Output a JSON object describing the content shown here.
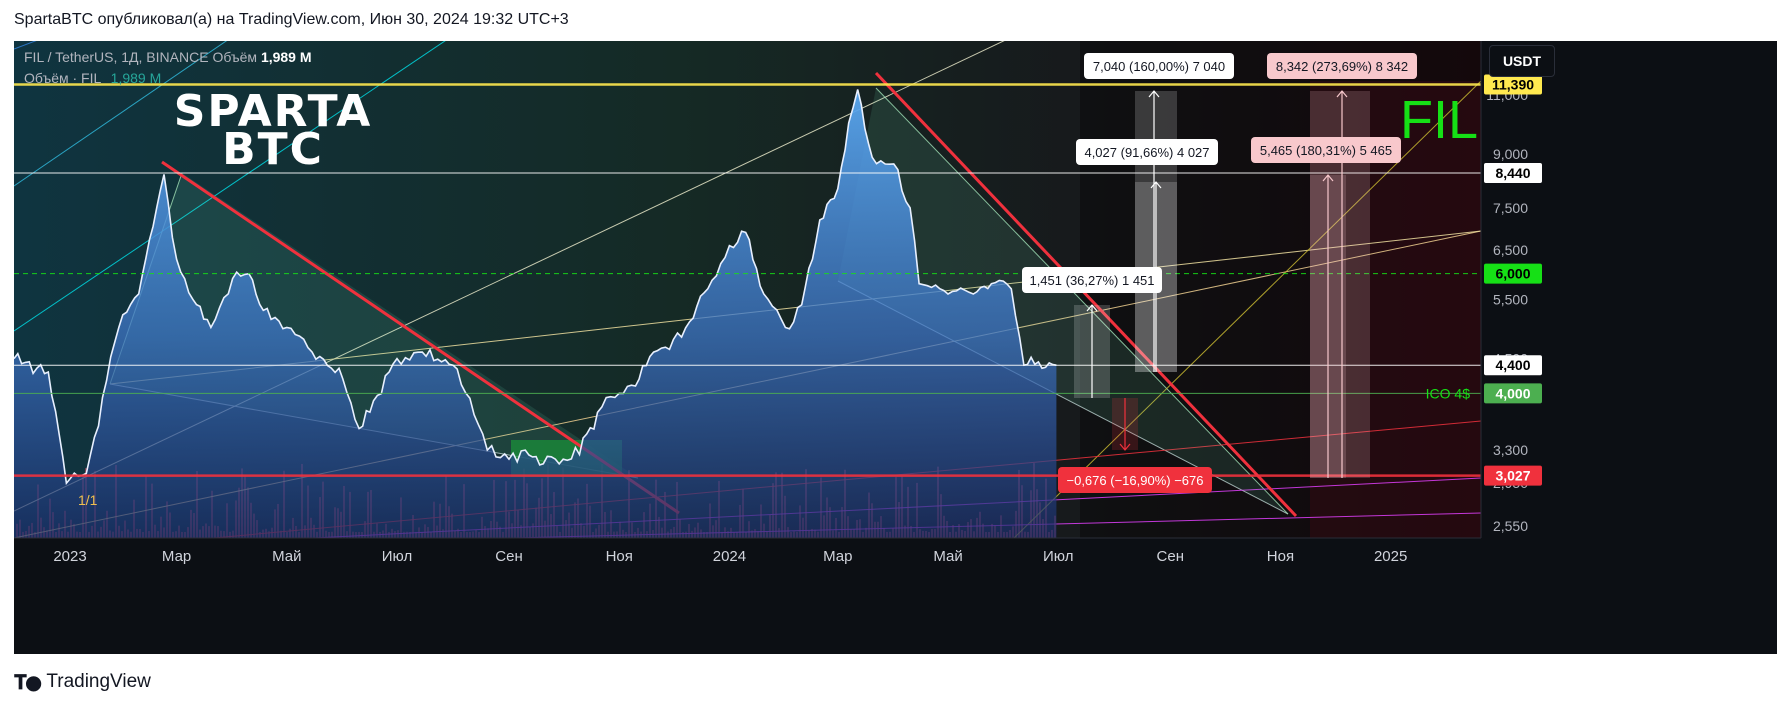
{
  "header": {
    "publish_line": "SpartaBTC опубликовал(а) на TradingView.com, Июн 30, 2024 19:32 UTC+3"
  },
  "symbol_info": {
    "title": "FIL / TetherUS, 1Д, BINANCE",
    "volume_label": "Объём",
    "volume_value": "1,989 M",
    "volume_line_label": "Объём · FIL",
    "volume_line_value": "1,989 M"
  },
  "watermark": {
    "line1": "SPARTA",
    "line2": "BTC"
  },
  "ticker_big": "FIL",
  "currency_button": "USDT",
  "footer": {
    "brand": "TradingView"
  },
  "colors": {
    "background": "#0c0f14",
    "area_line": "#e8f0ff",
    "area_top": "#5aa8f0",
    "area_bottom": "#1a2d6a",
    "resistance_red": "#f0313d",
    "level_yellow": "#ffe94f",
    "level_green": "#16e016",
    "ico_green": "#4caf50",
    "accent_pink": "#e040fb",
    "fib_green": "#1b8f3a"
  },
  "price_axis": {
    "ticks": [
      "11,000",
      "9,000",
      "7,500",
      "6,500",
      "5,500",
      "4,500",
      "3,300",
      "2,950",
      "2,550"
    ]
  },
  "time_axis": {
    "ticks": [
      "2023",
      "Мар",
      "Май",
      "Июл",
      "Сен",
      "Ноя",
      "2024",
      "Мар",
      "Май",
      "Июл",
      "Сен",
      "Ноя",
      "2025"
    ]
  },
  "levels": [
    {
      "price": 11.39,
      "label": "11,390",
      "color": "#ffe94f"
    },
    {
      "price": 8.44,
      "label": "8,440",
      "color": "#ffffff"
    },
    {
      "price": 6.0,
      "label": "6,000",
      "color": "#16e016"
    },
    {
      "price": 4.4,
      "label": "4,400",
      "color": "#ffffff"
    },
    {
      "price": 4.0,
      "label": "4,000",
      "color": "#4caf50"
    },
    {
      "price": 3.027,
      "label": "3,027",
      "color": "#f0313d"
    }
  ],
  "ico_label": "ICO 4$",
  "pivot_label": "1/1",
  "measurements": [
    {
      "text": "7,040 (160,00%) 7 040",
      "style": "white"
    },
    {
      "text": "4,027 (91,66%) 4 027",
      "style": "white"
    },
    {
      "text": "1,451 (36,27%) 1 451",
      "style": "white"
    },
    {
      "text": "−0,676 (−16,90%) −676",
      "style": "red"
    },
    {
      "text": "8,342 (273,69%) 8 342",
      "style": "pink"
    },
    {
      "text": "5,465 (180,31%) 5 465",
      "style": "pink"
    }
  ],
  "chart_data": {
    "type": "area",
    "title": "FIL / TetherUS, 1Д, BINANCE",
    "y_scale": "log",
    "ylim": [
      2.45,
      13.2
    ],
    "grid": false,
    "x": [
      "2022-12-01",
      "2022-12-20",
      "2022-12-30",
      "2023-01-10",
      "2023-01-28",
      "2023-02-08",
      "2023-02-18",
      "2023-02-22",
      "2023-03-01",
      "2023-03-10",
      "2023-03-20",
      "2023-04-01",
      "2023-04-10",
      "2023-04-18",
      "2023-05-01",
      "2023-05-15",
      "2023-06-01",
      "2023-06-10",
      "2023-06-18",
      "2023-07-01",
      "2023-07-15",
      "2023-08-01",
      "2023-08-15",
      "2023-08-20",
      "2023-09-01",
      "2023-09-10",
      "2023-09-20",
      "2023-10-01",
      "2023-10-10",
      "2023-10-20",
      "2023-11-01",
      "2023-11-10",
      "2023-11-20",
      "2023-12-01",
      "2023-12-10",
      "2023-12-20",
      "2024-01-01",
      "2024-01-10",
      "2024-01-20",
      "2024-02-01",
      "2024-02-10",
      "2024-02-20",
      "2024-03-01",
      "2024-03-07",
      "2024-03-12",
      "2024-03-20",
      "2024-04-01",
      "2024-04-10",
      "2024-04-15",
      "2024-05-01",
      "2024-05-15",
      "2024-05-25",
      "2024-06-05",
      "2024-06-12",
      "2024-06-20",
      "2024-06-30"
    ],
    "series": [
      {
        "values": [
          4.5,
          4.3,
          2.95,
          3.05,
          5.0,
          5.6,
          7.5,
          8.4,
          6.3,
          5.5,
          5.0,
          5.9,
          6.0,
          5.3,
          5.0,
          4.6,
          4.2,
          3.55,
          3.9,
          4.5,
          4.6,
          4.4,
          3.6,
          3.3,
          3.2,
          3.3,
          3.15,
          3.2,
          3.25,
          3.75,
          4.0,
          4.1,
          4.6,
          4.8,
          5.1,
          5.7,
          6.6,
          6.9,
          5.6,
          5.0,
          5.4,
          7.2,
          8.0,
          10.0,
          11.2,
          8.9,
          8.7,
          7.5,
          5.8,
          5.6,
          5.6,
          5.8,
          5.7,
          4.4,
          4.45,
          4.4
        ]
      }
    ],
    "volume": "1,989 M"
  }
}
